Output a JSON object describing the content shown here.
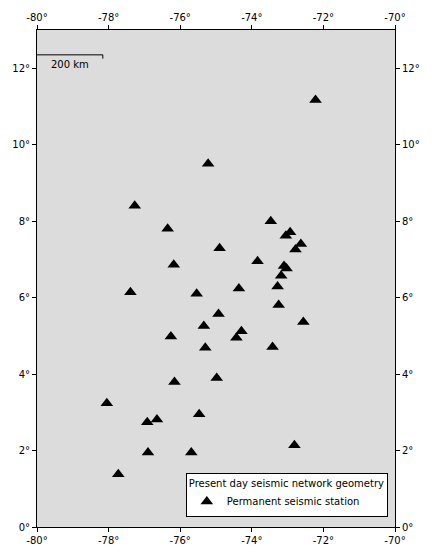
{
  "chart_data": {
    "type": "scatter",
    "series": [
      {
        "name": "Permanent seismic station",
        "color": "#000000",
        "marker": "triangle-up",
        "x": [
          -72.22,
          -75.22,
          -77.27,
          -76.35,
          -74.9,
          -73.47,
          -73.05,
          -72.93,
          -72.63,
          -72.78,
          -73.1,
          -73.03,
          -73.18,
          -73.28,
          -73.84,
          -76.18,
          -77.39,
          -75.54,
          -74.36,
          -73.25,
          -75.34,
          -74.93,
          -76.26,
          -74.29,
          -74.43,
          -72.56,
          -75.3,
          -73.42,
          -76.16,
          -74.98,
          -75.47,
          -78.05,
          -76.92,
          -76.65,
          -72.81,
          -76.9,
          -75.69,
          -77.73
        ],
        "y": [
          11.17,
          9.5,
          8.4,
          7.8,
          7.29,
          8.0,
          7.62,
          7.71,
          7.4,
          7.26,
          6.83,
          6.76,
          6.57,
          6.29,
          6.95,
          6.86,
          6.14,
          6.1,
          6.24,
          5.81,
          5.26,
          5.57,
          4.98,
          5.12,
          4.95,
          5.36,
          4.69,
          4.71,
          3.79,
          3.9,
          2.95,
          3.24,
          2.74,
          2.81,
          2.14,
          1.95,
          1.95,
          1.38
        ]
      }
    ],
    "legend_title": "Present day seismic network geometry",
    "legend": "lower right",
    "xlim": [
      -80,
      -70
    ],
    "xticks": [
      {
        "value": -80,
        "label": "-80°"
      },
      {
        "value": -78,
        "label": "-78°"
      },
      {
        "value": -76,
        "label": "-76°"
      },
      {
        "value": -74,
        "label": "-74°"
      },
      {
        "value": -72,
        "label": "-72°"
      },
      {
        "value": -70,
        "label": "-70°"
      }
    ],
    "ylim": [
      0,
      13
    ],
    "yticks": [
      {
        "value": 0,
        "label": "0°"
      },
      {
        "value": 2,
        "label": "2°"
      },
      {
        "value": 4,
        "label": "4°"
      },
      {
        "value": 6,
        "label": "6°"
      },
      {
        "value": 8,
        "label": "8°"
      },
      {
        "value": 10,
        "label": "10°"
      },
      {
        "value": 12,
        "label": "12°"
      }
    ],
    "grid": false,
    "scale_bar": {
      "label": "200 km",
      "km": 200
    }
  }
}
